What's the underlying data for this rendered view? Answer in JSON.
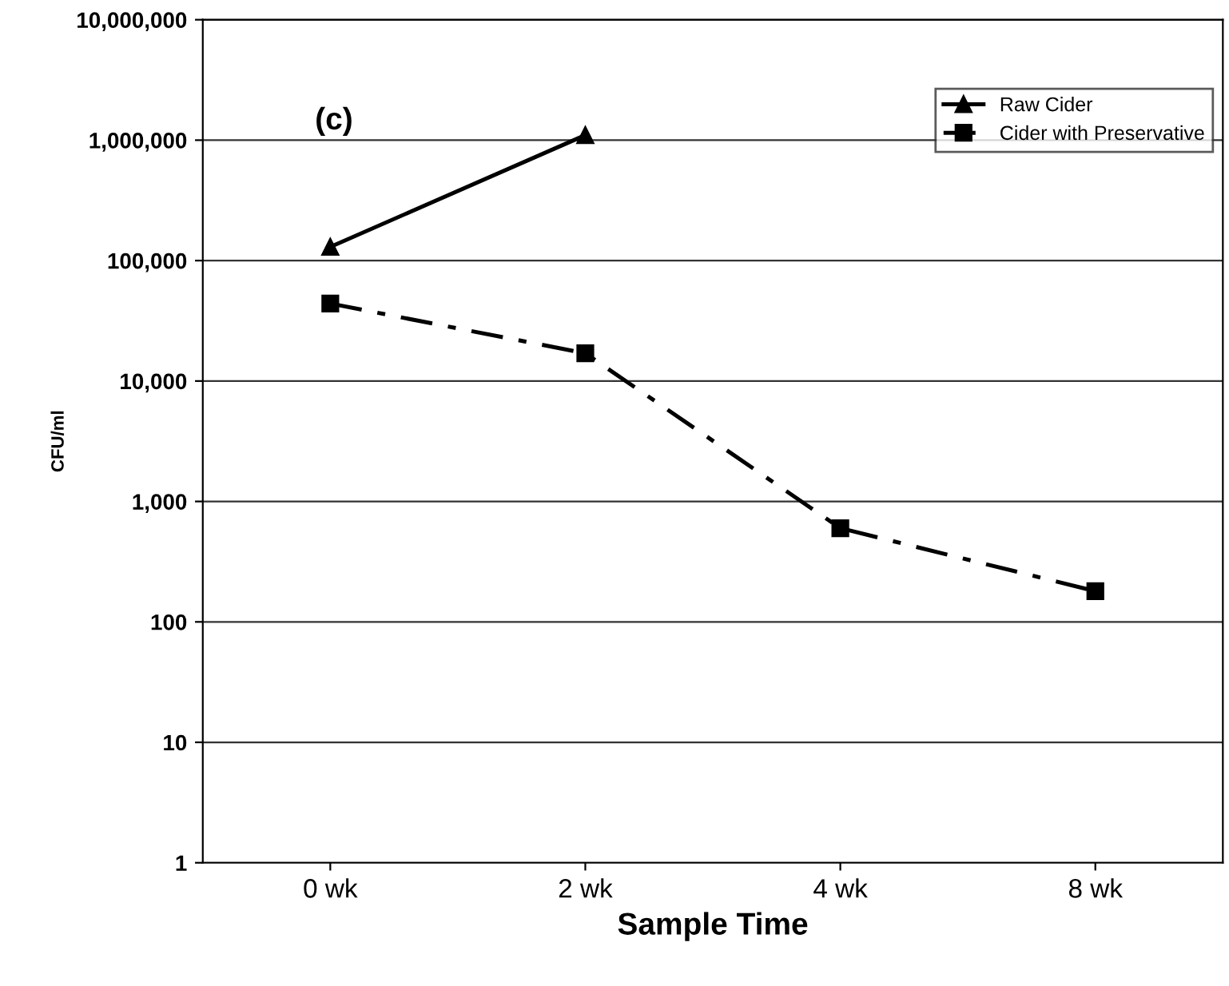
{
  "chart_data": {
    "type": "line",
    "xlabel": "Sample Time",
    "ylabel": "CFU/ml",
    "annotations": [
      "(c)"
    ],
    "categories": [
      "0 wk",
      "2 wk",
      "4 wk",
      "8 wk"
    ],
    "series": [
      {
        "name": "Raw Cider",
        "color": "#000000",
        "values": [
          130000,
          1100000,
          null,
          null
        ],
        "marker": "triangle",
        "line_style": "solid"
      },
      {
        "name": "Cider with Preservative",
        "color": "#000000",
        "values": [
          44000,
          17000,
          600,
          180
        ],
        "marker": "square",
        "line_style": "dashdot"
      }
    ],
    "log": true,
    "ylim": [
      1,
      10000000
    ],
    "yticks": [
      {
        "value": 1,
        "label": "1"
      },
      {
        "value": 10,
        "label": "10"
      },
      {
        "value": 100,
        "label": "100"
      },
      {
        "value": 1000,
        "label": "1,000"
      },
      {
        "value": 10000,
        "label": "10,000"
      },
      {
        "value": 100000,
        "label": "100,000"
      },
      {
        "value": 1000000,
        "label": "1,000,000"
      },
      {
        "value": 10000000,
        "label": "10,000,000"
      }
    ],
    "grid": "y",
    "legend": "top right"
  }
}
